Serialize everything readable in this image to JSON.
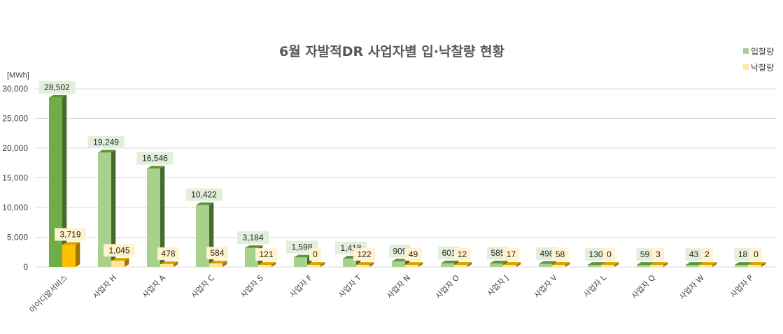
{
  "chart_data": {
    "type": "bar",
    "title": "6월 자발적DR 사업자별 입·낙찰량 현황",
    "unit_label": "[MWh]",
    "ylim": [
      0,
      30000
    ],
    "yticks": [
      "0",
      "5,000",
      "10,000",
      "15,000",
      "20,000",
      "25,000",
      "30,000"
    ],
    "ytick_values": [
      0,
      5000,
      10000,
      15000,
      20000,
      25000,
      30000
    ],
    "grid": true,
    "legend_position": "top-right",
    "categories": [
      "아이디알서비스",
      "사업자 H",
      "사업자 A",
      "사업자 C",
      "사업자 S",
      "사업자 F",
      "사업자 T",
      "사업자 N",
      "사업자 O",
      "사업자 J",
      "사업자 V",
      "사업자 L",
      "사업자 Q",
      "사업자 W",
      "사업자 P"
    ],
    "series": [
      {
        "name": "입찰량",
        "values": [
          28502,
          19249,
          16546,
          10422,
          3184,
          1598,
          1418,
          909,
          601,
          585,
          498,
          130,
          59,
          43,
          18
        ],
        "labels": [
          "28,502",
          "19,249",
          "16,546",
          "10,422",
          "3,184",
          "1,598",
          "1,418",
          "909",
          "601",
          "585",
          "498",
          "130",
          "59",
          "43",
          "18"
        ],
        "color": "#a9d18e",
        "highlight_color": "#70ad47",
        "label_bg": "#e2efda"
      },
      {
        "name": "낙찰량",
        "values": [
          3719,
          1045,
          478,
          584,
          121,
          0,
          122,
          49,
          12,
          17,
          58,
          0,
          3,
          2,
          0
        ],
        "labels": [
          "3,719",
          "1,045",
          "478",
          "584",
          "121",
          "0",
          "122",
          "49",
          "12",
          "17",
          "58",
          "0",
          "3",
          "2",
          "0"
        ],
        "color": "#ffe699",
        "highlight_color": "#ffc000",
        "label_bg": "#fff2cc"
      }
    ]
  }
}
